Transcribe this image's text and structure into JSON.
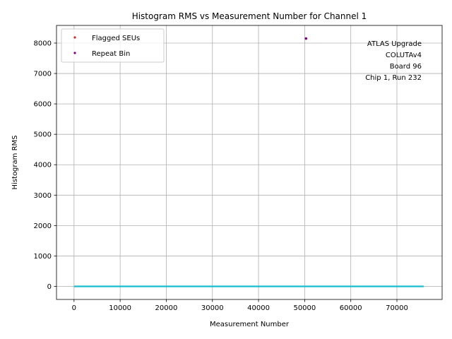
{
  "chart_data": {
    "type": "scatter",
    "title": "Histogram RMS vs Measurement Number for Channel 1",
    "xlabel": "Measurement Number",
    "ylabel": "Histogram RMS",
    "xlim": [
      -3800,
      79800
    ],
    "ylim": [
      -430,
      8580
    ],
    "xticks": [
      0,
      10000,
      20000,
      30000,
      40000,
      50000,
      60000,
      70000
    ],
    "yticks": [
      0,
      1000,
      2000,
      3000,
      4000,
      5000,
      6000,
      7000,
      8000
    ],
    "grid": true,
    "legend_position": "upper-left",
    "series": [
      {
        "name": "Flagged SEUs",
        "color": "#d62728",
        "marker": "point",
        "points": []
      },
      {
        "name": "Repeat Bin",
        "color": "#800080",
        "marker": "point",
        "points": [
          [
            50300,
            8150
          ]
        ]
      },
      {
        "name": "",
        "color": "#17becf",
        "marker": "line",
        "points": [
          [
            0,
            0
          ],
          [
            75800,
            0
          ]
        ]
      }
    ],
    "annotation": [
      "ATLAS Upgrade",
      "COLUTAv4",
      "Board 96",
      "Chip 1, Run 232"
    ]
  }
}
